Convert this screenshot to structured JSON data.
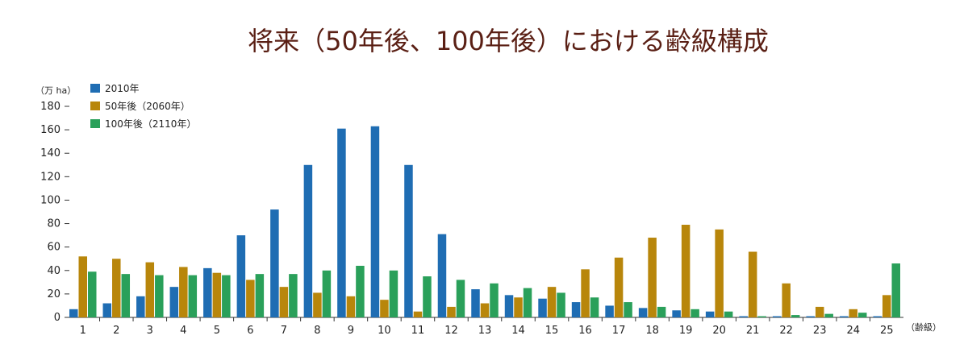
{
  "chart_data": {
    "type": "bar",
    "title": "将来（50年後、100年後）における齢級構成",
    "ylabel": "（万 ha）",
    "xlabel": "（齢級）",
    "ylim": [
      0,
      180
    ],
    "yticks": [
      "0",
      "20",
      "40",
      "60",
      "80",
      "100",
      "120",
      "140",
      "160",
      "180"
    ],
    "categories": [
      "1",
      "2",
      "3",
      "4",
      "5",
      "6",
      "7",
      "8",
      "9",
      "10",
      "11",
      "12",
      "13",
      "14",
      "15",
      "16",
      "17",
      "18",
      "19",
      "20",
      "21",
      "22",
      "23",
      "24",
      "25"
    ],
    "series": [
      {
        "name": "2010年",
        "color": "#1f6db3",
        "values": [
          7,
          12,
          18,
          26,
          42,
          70,
          92,
          130,
          161,
          163,
          130,
          71,
          24,
          19,
          16,
          13,
          10,
          8,
          6,
          5,
          1,
          1,
          1,
          1,
          1
        ]
      },
      {
        "name": "50年後（2060年）",
        "color": "#b8860b",
        "values": [
          52,
          50,
          47,
          43,
          38,
          32,
          26,
          21,
          18,
          15,
          5,
          9,
          12,
          17,
          26,
          41,
          51,
          68,
          79,
          75,
          56,
          29,
          9,
          7,
          19
        ]
      },
      {
        "name": "100年後（2110年）",
        "color": "#2aa05a",
        "values": [
          39,
          37,
          36,
          36,
          36,
          37,
          37,
          40,
          44,
          40,
          35,
          32,
          29,
          25,
          21,
          17,
          13,
          9,
          7,
          5,
          1,
          2,
          3,
          4,
          46
        ]
      }
    ],
    "legend": "top-left",
    "grid": false
  }
}
